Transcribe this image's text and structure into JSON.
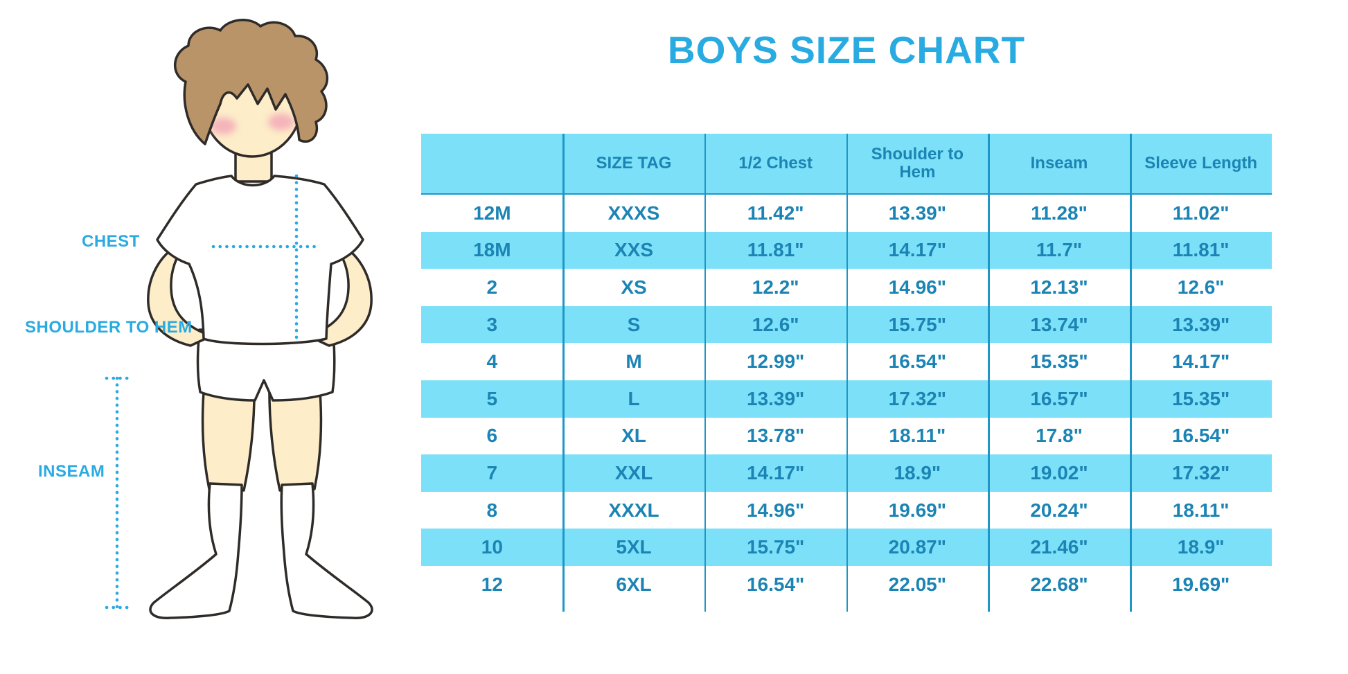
{
  "title": "BOYS SIZE CHART",
  "colors": {
    "accent": "#29abe2",
    "row_band": "#7ce1f8",
    "table_text": "#1b84b4",
    "grid_line": "#1e96c6",
    "skin": "#fdedc9",
    "hair": "#b99469",
    "outline": "#2e2b28"
  },
  "figure": {
    "labels": {
      "chest": "CHEST",
      "shoulder_to_hem": "SHOULDER TO HEM",
      "inseam": "INSEAM"
    }
  },
  "table": {
    "headers": [
      "",
      "SIZE TAG",
      "1/2 Chest",
      "Shoulder to Hem",
      "Inseam",
      "Sleeve Length"
    ],
    "rows": [
      [
        "12M",
        "XXXS",
        "11.42\"",
        "13.39\"",
        "11.28\"",
        "11.02\""
      ],
      [
        "18M",
        "XXS",
        "11.81\"",
        "14.17\"",
        "11.7\"",
        "11.81\""
      ],
      [
        "2",
        "XS",
        "12.2\"",
        "14.96\"",
        "12.13\"",
        "12.6\""
      ],
      [
        "3",
        "S",
        "12.6\"",
        "15.75\"",
        "13.74\"",
        "13.39\""
      ],
      [
        "4",
        "M",
        "12.99\"",
        "16.54\"",
        "15.35\"",
        "14.17\""
      ],
      [
        "5",
        "L",
        "13.39\"",
        "17.32\"",
        "16.57\"",
        "15.35\""
      ],
      [
        "6",
        "XL",
        "13.78\"",
        "18.11\"",
        "17.8\"",
        "16.54\""
      ],
      [
        "7",
        "XXL",
        "14.17\"",
        "18.9\"",
        "19.02\"",
        "17.32\""
      ],
      [
        "8",
        "XXXL",
        "14.96\"",
        "19.69\"",
        "20.24\"",
        "18.11\""
      ],
      [
        "10",
        "5XL",
        "15.75\"",
        "20.87\"",
        "21.46\"",
        "18.9\""
      ],
      [
        "12",
        "6XL",
        "16.54\"",
        "22.05\"",
        "22.68\"",
        "19.69\""
      ]
    ]
  }
}
